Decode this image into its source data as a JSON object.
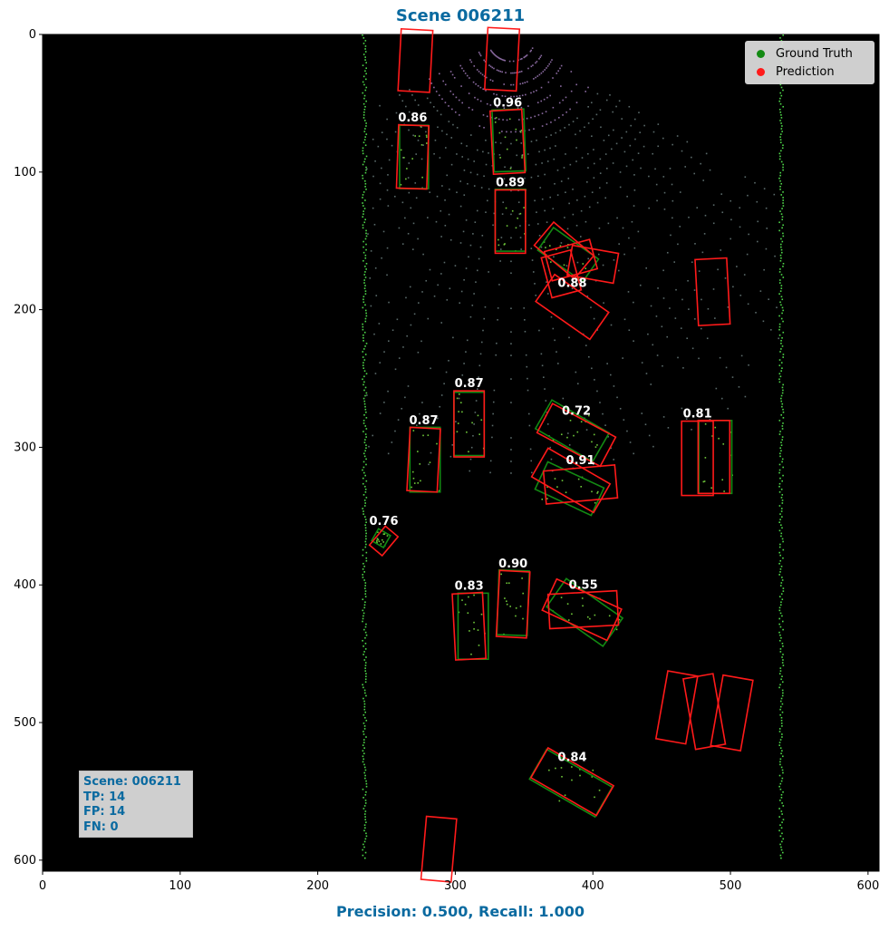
{
  "title": "Scene 006211",
  "footer": "Precision: 0.500, Recall: 1.000",
  "stats": {
    "scene": "Scene: 006211",
    "tp": "TP: 14",
    "fp": "FP: 14",
    "fn": "FN: 0"
  },
  "legend": {
    "ground_truth": "Ground Truth",
    "prediction": "Prediction"
  },
  "colors": {
    "ground_truth": "#138a13",
    "prediction": "#ff1a1a",
    "background": "#000000",
    "title": "#0a6aa0"
  },
  "chart_data": {
    "type": "scatter",
    "title": "Scene 006211",
    "xlim": [
      0,
      608
    ],
    "ylim": [
      608,
      0
    ],
    "x_ticks": [
      0,
      100,
      200,
      300,
      400,
      500,
      600
    ],
    "y_ticks": [
      0,
      100,
      200,
      300,
      400,
      500,
      600
    ],
    "ground_truth_boxes": [
      {
        "cx": 270,
        "cy": 89,
        "w": 21,
        "h": 46,
        "angle": 0
      },
      {
        "cx": 339,
        "cy": 77,
        "w": 23,
        "h": 45,
        "angle": -2
      },
      {
        "cx": 340,
        "cy": 135,
        "w": 22,
        "h": 45,
        "angle": 0
      },
      {
        "cx": 382,
        "cy": 160,
        "w": 40,
        "h": 20,
        "angle": 35
      },
      {
        "cx": 310,
        "cy": 283,
        "w": 22,
        "h": 46,
        "angle": 0
      },
      {
        "cx": 278,
        "cy": 309,
        "w": 22,
        "h": 47,
        "angle": 0
      },
      {
        "cx": 385,
        "cy": 288,
        "w": 48,
        "h": 24,
        "angle": 30
      },
      {
        "cx": 383,
        "cy": 330,
        "w": 45,
        "h": 22,
        "angle": 25
      },
      {
        "cx": 489,
        "cy": 307,
        "w": 24,
        "h": 53,
        "angle": 0
      },
      {
        "cx": 246,
        "cy": 366,
        "w": 10,
        "h": 10,
        "angle": 30
      },
      {
        "cx": 313,
        "cy": 430,
        "w": 22,
        "h": 48,
        "angle": 0
      },
      {
        "cx": 342,
        "cy": 413,
        "w": 22,
        "h": 47,
        "angle": 2
      },
      {
        "cx": 394,
        "cy": 420,
        "w": 50,
        "h": 25,
        "angle": 35
      },
      {
        "cx": 384,
        "cy": 544,
        "w": 55,
        "h": 25,
        "angle": 30
      }
    ],
    "prediction_boxes": [
      {
        "cx": 271,
        "cy": 19,
        "w": 23,
        "h": 45,
        "angle": 3
      },
      {
        "cx": 334,
        "cy": 18,
        "w": 23,
        "h": 45,
        "angle": 3
      },
      {
        "cx": 269,
        "cy": 89,
        "w": 22,
        "h": 46,
        "angle": 2,
        "score": "0.86"
      },
      {
        "cx": 338,
        "cy": 78,
        "w": 23,
        "h": 46,
        "angle": -3,
        "score": "0.96"
      },
      {
        "cx": 340,
        "cy": 136,
        "w": 22,
        "h": 46,
        "angle": 0,
        "score": "0.89"
      },
      {
        "cx": 379,
        "cy": 157,
        "w": 38,
        "h": 22,
        "angle": 40
      },
      {
        "cx": 384,
        "cy": 164,
        "w": 34,
        "h": 22,
        "angle": -15
      },
      {
        "cx": 400,
        "cy": 167,
        "w": 34,
        "h": 22,
        "angle": 10
      },
      {
        "cx": 377,
        "cy": 174,
        "w": 22,
        "h": 30,
        "angle": -15
      },
      {
        "cx": 385,
        "cy": 198,
        "w": 48,
        "h": 24,
        "angle": 35,
        "score": "0.88"
      },
      {
        "cx": 487,
        "cy": 187,
        "w": 23,
        "h": 48,
        "angle": -3
      },
      {
        "cx": 310,
        "cy": 283,
        "w": 22,
        "h": 48,
        "angle": 0,
        "score": "0.87"
      },
      {
        "cx": 277,
        "cy": 309,
        "w": 22,
        "h": 46,
        "angle": 3,
        "score": "0.87"
      },
      {
        "cx": 388,
        "cy": 291,
        "w": 52,
        "h": 24,
        "angle": 28,
        "score": "0.72"
      },
      {
        "cx": 384,
        "cy": 324,
        "w": 52,
        "h": 24,
        "angle": 30
      },
      {
        "cx": 391,
        "cy": 327,
        "w": 52,
        "h": 24,
        "angle": -5,
        "score": "0.91"
      },
      {
        "cx": 476,
        "cy": 308,
        "w": 23,
        "h": 54,
        "angle": 0,
        "score": "0.81"
      },
      {
        "cx": 488,
        "cy": 307,
        "w": 23,
        "h": 53,
        "angle": 0
      },
      {
        "cx": 248,
        "cy": 368,
        "w": 12,
        "h": 18,
        "angle": 40,
        "score": "0.76"
      },
      {
        "cx": 310,
        "cy": 430,
        "w": 22,
        "h": 48,
        "angle": -3,
        "score": "0.83"
      },
      {
        "cx": 342,
        "cy": 414,
        "w": 22,
        "h": 48,
        "angle": 3,
        "score": "0.90"
      },
      {
        "cx": 392,
        "cy": 418,
        "w": 52,
        "h": 25,
        "angle": 25
      },
      {
        "cx": 393,
        "cy": 418,
        "w": 50,
        "h": 25,
        "angle": -3,
        "score": "0.55"
      },
      {
        "cx": 385,
        "cy": 543,
        "w": 55,
        "h": 25,
        "angle": 30,
        "score": "0.84"
      },
      {
        "cx": 461,
        "cy": 489,
        "w": 22,
        "h": 50,
        "angle": 10
      },
      {
        "cx": 481,
        "cy": 492,
        "w": 22,
        "h": 52,
        "angle": -10
      },
      {
        "cx": 501,
        "cy": 493,
        "w": 22,
        "h": 52,
        "angle": 10
      },
      {
        "cx": 288,
        "cy": 592,
        "w": 22,
        "h": 46,
        "angle": 5
      }
    ]
  }
}
